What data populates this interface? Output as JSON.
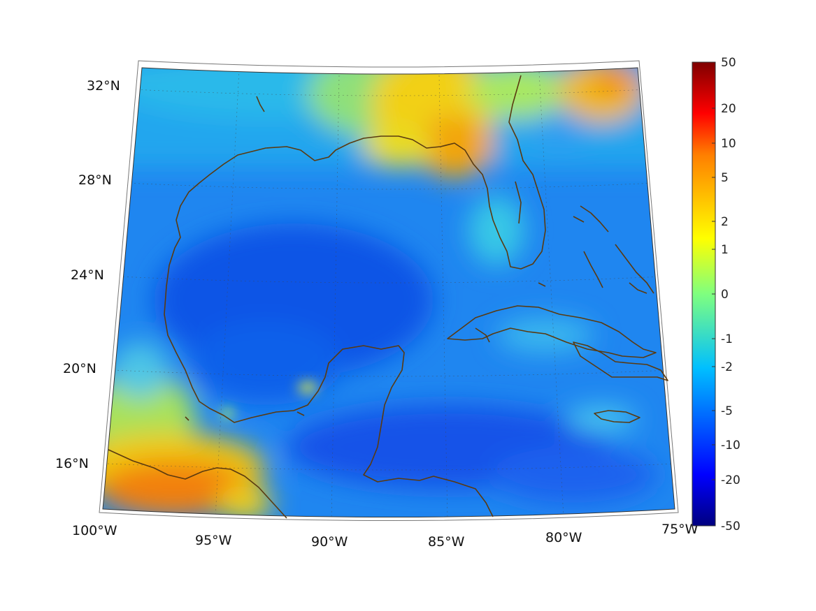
{
  "map": {
    "lon_labels": [
      "100°W",
      "95°W",
      "90°W",
      "85°W",
      "80°W",
      "75°W"
    ],
    "lat_labels": [
      "32°N",
      "28°N",
      "24°N",
      "20°N",
      "16°N"
    ],
    "coastline_color": "#5a3a10",
    "grid": "dotted"
  },
  "colorbar": {
    "colormap": "jet",
    "scale": "symmetric-log",
    "ticks": [
      "50",
      "20",
      "10",
      "5",
      "2",
      "1",
      "0",
      "-1",
      "-2",
      "-5",
      "-10",
      "-20",
      "-50"
    ]
  }
}
